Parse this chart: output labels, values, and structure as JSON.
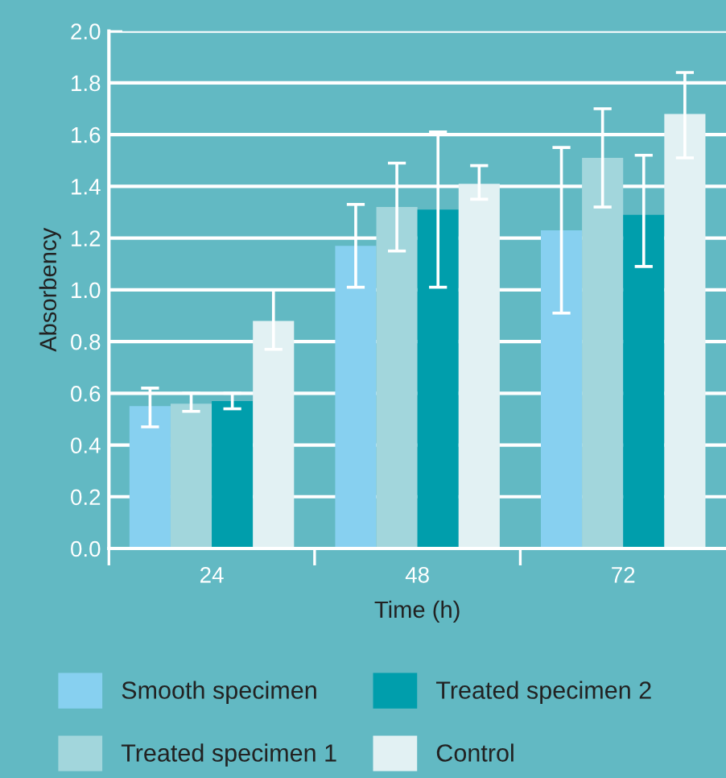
{
  "chart_data": {
    "type": "bar",
    "xlabel": "Time (h)",
    "ylabel": "Absorbency",
    "categories": [
      "24",
      "48",
      "72"
    ],
    "series": [
      {
        "name": "Smooth specimen",
        "color": "#87d0f0",
        "values": [
          0.55,
          1.17,
          1.23
        ],
        "errors": [
          [
            0.47,
            0.62
          ],
          [
            1.01,
            1.33
          ],
          [
            0.91,
            1.55
          ]
        ]
      },
      {
        "name": "Treated specimen 1",
        "color": "#a2d6dc",
        "values": [
          0.56,
          1.32,
          1.51
        ],
        "errors": [
          [
            0.53,
            0.6
          ],
          [
            1.15,
            1.49
          ],
          [
            1.32,
            1.7
          ]
        ]
      },
      {
        "name": "Treated specimen 2",
        "color": "#009eac",
        "values": [
          0.57,
          1.31,
          1.29
        ],
        "errors": [
          [
            0.54,
            0.6
          ],
          [
            1.01,
            1.61
          ],
          [
            1.09,
            1.52
          ]
        ]
      },
      {
        "name": "Control",
        "color": "#e2f1f3",
        "values": [
          0.88,
          1.41,
          1.68
        ],
        "errors": [
          [
            0.77,
            1.0
          ],
          [
            1.35,
            1.48
          ],
          [
            1.51,
            1.84
          ]
        ]
      }
    ],
    "ylim": [
      0,
      2.0
    ],
    "yticks": [
      {
        "value": 0,
        "label": "0.0"
      },
      {
        "value": 0.2,
        "label": "0.2"
      },
      {
        "value": 0.4,
        "label": "0.4"
      },
      {
        "value": 0.6,
        "label": "0.6"
      },
      {
        "value": 0.8,
        "label": "0.8"
      },
      {
        "value": 1.0,
        "label": "1.0"
      },
      {
        "value": 1.2,
        "label": "1.2"
      },
      {
        "value": 1.4,
        "label": "1.4"
      },
      {
        "value": 1.6,
        "label": "1.6"
      },
      {
        "value": 1.8,
        "label": "1.8"
      },
      {
        "value": 2.0,
        "label": "2.0"
      }
    ],
    "grid": "y",
    "legend": "bottom"
  }
}
